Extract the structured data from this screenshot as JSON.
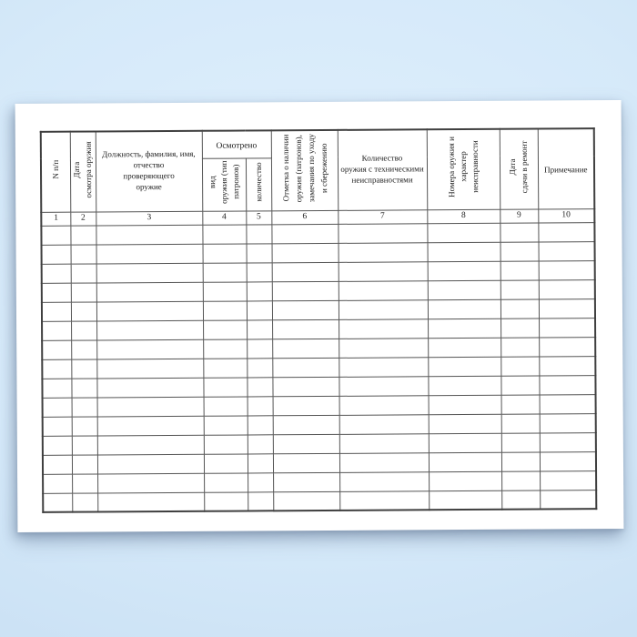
{
  "page": {
    "background_color": "#d5e9f9",
    "paper_color": "#ffffff",
    "border_color": "#555555"
  },
  "table": {
    "group_header": {
      "osmotreno": "Осмотрено"
    },
    "columns": [
      {
        "num": "1",
        "label": "N п/п",
        "vertical": true
      },
      {
        "num": "2",
        "label": "Дата\nосмотра оружия",
        "vertical": true
      },
      {
        "num": "3",
        "label": "Должность, фамилия, имя,\nотчество\nпроверяющего\nоружие",
        "vertical": false
      },
      {
        "num": "4",
        "label": "вид\nоружия (тип\nпатронов)",
        "vertical": true
      },
      {
        "num": "5",
        "label": "количество",
        "vertical": true
      },
      {
        "num": "6",
        "label": "Отметка о наличии\nоружия (патронов),\nзамечания по уходу\nи сбережению",
        "vertical": true
      },
      {
        "num": "7",
        "label": "Количество\nоружия с техническими\nнеисправностями",
        "vertical": false
      },
      {
        "num": "8",
        "label": "Номера оружия и\nхарактер\nнеисправности",
        "vertical": true
      },
      {
        "num": "9",
        "label": "Дата\nсдачи в ремонт",
        "vertical": true
      },
      {
        "num": "10",
        "label": "Примечание",
        "vertical": false
      }
    ],
    "empty_row_count": 15
  }
}
